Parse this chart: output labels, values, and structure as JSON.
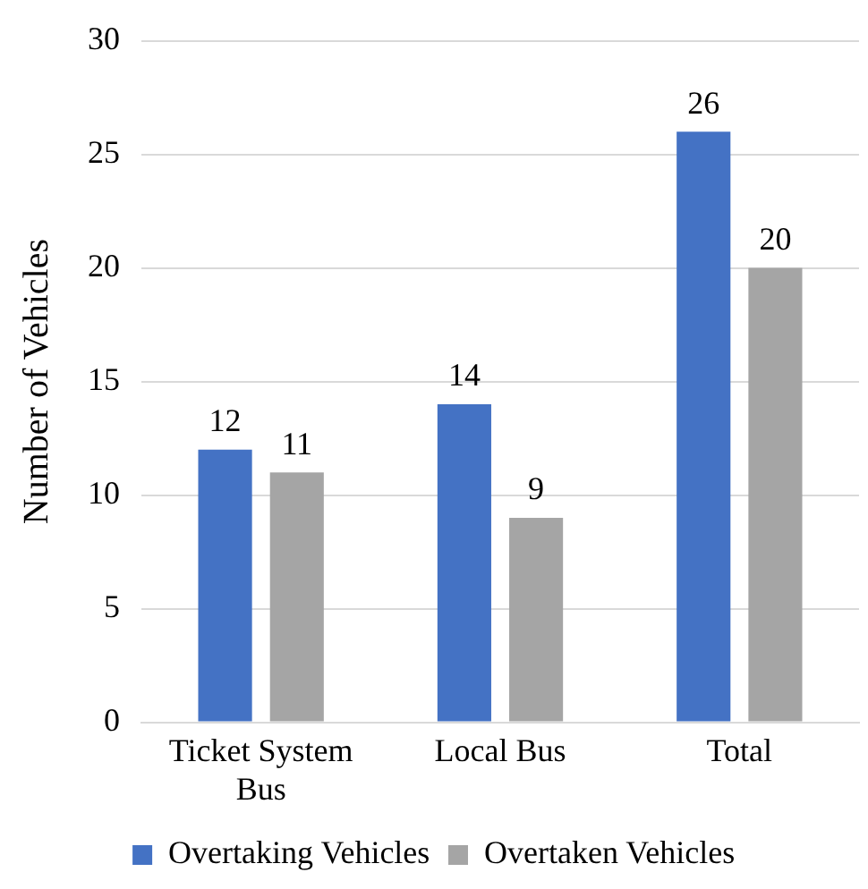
{
  "chart_data": {
    "type": "bar",
    "ylabel": "Number of Vehicles",
    "categories": [
      "Ticket System Bus",
      "Local Bus",
      "Total"
    ],
    "series": [
      {
        "name": "Overtaking Vehicles",
        "color": "#4472c4",
        "values": [
          12,
          14,
          26
        ]
      },
      {
        "name": "Overtaken Vehicles",
        "color": "#a5a5a5",
        "values": [
          11,
          9,
          20
        ]
      }
    ],
    "ylim": [
      0,
      30
    ],
    "yticks": [
      0,
      5,
      10,
      15,
      20,
      25,
      30
    ],
    "grid": "y",
    "legend": "bottom",
    "data_labels": true
  }
}
